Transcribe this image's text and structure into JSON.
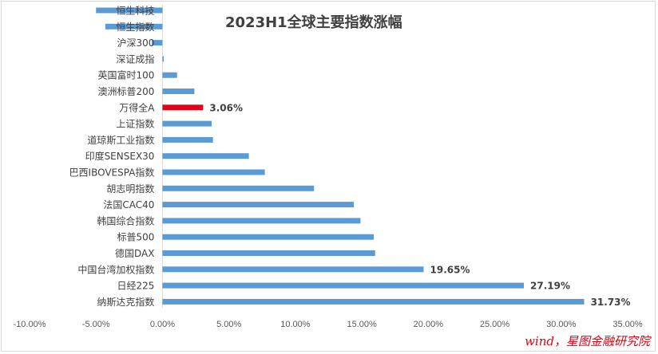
{
  "chart_data": {
    "type": "bar",
    "orientation": "horizontal",
    "title": "2023H1全球主要指数涨幅",
    "categories": [
      "恒生科技",
      "恒生指数",
      "沪深300",
      "深证成指",
      "英国富时100",
      "澳洲标普200",
      "万得全A",
      "上证指数",
      "道琼斯工业指数",
      "印度SENSEX30",
      "巴西IBOVESPA指数",
      "胡志明指数",
      "法国CAC40",
      "韩国综合指数",
      "标普500",
      "德国DAX",
      "中国台湾加权指数",
      "日经225",
      "纳斯达克指数"
    ],
    "values": [
      -5.0,
      -4.3,
      -0.8,
      0.1,
      1.1,
      2.4,
      3.06,
      3.7,
      3.8,
      6.5,
      7.7,
      11.4,
      14.4,
      14.9,
      15.9,
      16.0,
      19.65,
      27.19,
      31.73
    ],
    "data_labels": [
      null,
      null,
      null,
      null,
      null,
      null,
      "3.06%",
      null,
      null,
      null,
      null,
      null,
      null,
      null,
      null,
      null,
      "19.65%",
      "27.19%",
      "31.73%"
    ],
    "highlight_category": "万得全A",
    "xlim": [
      -10,
      35
    ],
    "x_ticks": [
      "-10.00%",
      "-5.00%",
      "0.00%",
      "5.00%",
      "10.00%",
      "15.00%",
      "20.00%",
      "25.00%",
      "30.00%",
      "35.00%"
    ],
    "grid": false,
    "legend": "none",
    "colors": {
      "bar": "#5b9bd5",
      "highlight": "#e60012"
    }
  },
  "source_text": "wind，星图金融研究院"
}
